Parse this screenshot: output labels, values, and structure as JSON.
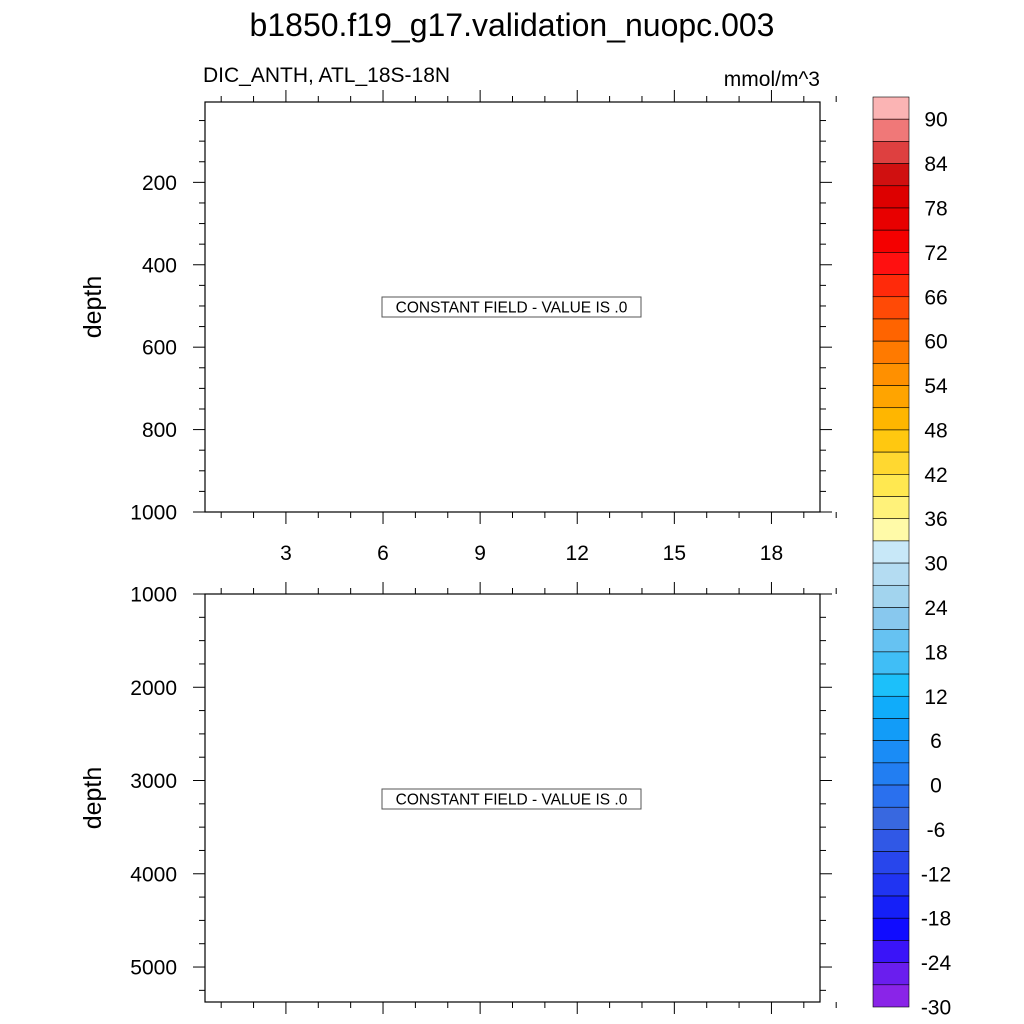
{
  "chart_data": {
    "type": "heatmap",
    "title": "b1850.f19_g17.validation_nuopc.003",
    "variable_label": "DIC_ANTH, ATL_18S-18N",
    "units_label": "mmol/m^3",
    "x_tick_labels": [
      "3",
      "6",
      "9",
      "12",
      "15",
      "18"
    ],
    "panels": [
      {
        "ylabel": "depth",
        "y_tick_labels": [
          "200",
          "400",
          "600",
          "800",
          "1000"
        ],
        "annotation": "CONSTANT FIELD - VALUE IS .0",
        "value": 0
      },
      {
        "ylabel": "depth",
        "y_tick_labels": [
          "1000",
          "2000",
          "3000",
          "4000",
          "5000"
        ],
        "annotation": "CONSTANT FIELD - VALUE IS .0",
        "value": 0
      }
    ],
    "colorbar": {
      "labels": [
        "90",
        "84",
        "78",
        "72",
        "66",
        "60",
        "54",
        "48",
        "42",
        "36",
        "30",
        "24",
        "18",
        "12",
        "6",
        "0",
        "-6",
        "-12",
        "-18",
        "-24",
        "-30"
      ],
      "colors": [
        "#fbb4b4",
        "#f07878",
        "#de4040",
        "#d01010",
        "#dd0000",
        "#e80000",
        "#f40000",
        "#ff1010",
        "#ff2a0a",
        "#ff4a06",
        "#ff6400",
        "#ff7a00",
        "#ff9000",
        "#ffa400",
        "#ffb600",
        "#ffc810",
        "#ffd830",
        "#ffe850",
        "#fff27a",
        "#fffaa8",
        "#c8e8f8",
        "#b4dcf2",
        "#a2d4ee",
        "#88c8ee",
        "#66c2f2",
        "#40bef6",
        "#1cc0fa",
        "#10acfa",
        "#129cf8",
        "#1a8cf6",
        "#227ef2",
        "#2a70ee",
        "#3868e0",
        "#3058e6",
        "#2846ec",
        "#2034f2",
        "#1520f8",
        "#100cff",
        "#3a14f8",
        "#6a1eee",
        "#8a24e8"
      ]
    }
  }
}
